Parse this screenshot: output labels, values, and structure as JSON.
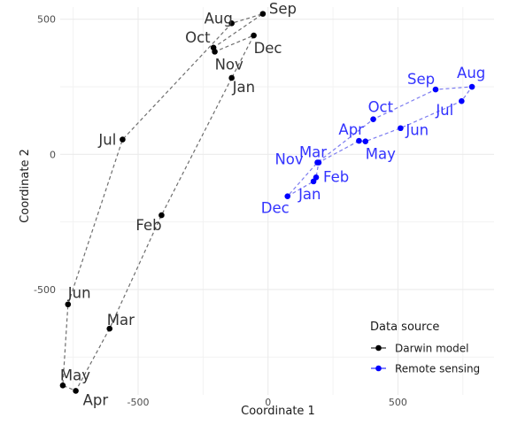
{
  "chart_data": {
    "type": "scatter",
    "title": "",
    "xlabel": "Coordinate 1",
    "ylabel": "Coordinate 2",
    "xlim": [
      -800,
      870
    ],
    "ylim": [
      -890,
      545
    ],
    "xticks": [
      -500,
      0,
      500
    ],
    "yticks": [
      -500,
      0,
      500
    ],
    "grid": true,
    "legend": {
      "title": "Data source",
      "position": "bottom-right"
    },
    "series": [
      {
        "name": "Darwin model",
        "color": "#000000",
        "line_color": "#6e6e6e",
        "points": [
          {
            "label": "Jan",
            "x": -140,
            "y": 283
          },
          {
            "label": "Feb",
            "x": -410,
            "y": -225
          },
          {
            "label": "Mar",
            "x": -610,
            "y": -645
          },
          {
            "label": "Apr",
            "x": -740,
            "y": -875
          },
          {
            "label": "May",
            "x": -790,
            "y": -855
          },
          {
            "label": "Jun",
            "x": -770,
            "y": -555
          },
          {
            "label": "Jul",
            "x": -560,
            "y": 55
          },
          {
            "label": "Aug",
            "x": -140,
            "y": 485
          },
          {
            "label": "Sep",
            "x": -20,
            "y": 520
          },
          {
            "label": "Oct",
            "x": -210,
            "y": 395
          },
          {
            "label": "Nov",
            "x": -205,
            "y": 380
          },
          {
            "label": "Dec",
            "x": -55,
            "y": 440
          }
        ]
      },
      {
        "name": "Remote sensing",
        "color": "#0000ff",
        "line_color": "#7b7bf0",
        "points": [
          {
            "label": "Jan",
            "x": 175,
            "y": -100
          },
          {
            "label": "Feb",
            "x": 185,
            "y": -85
          },
          {
            "label": "Mar",
            "x": 195,
            "y": -30
          },
          {
            "label": "Apr",
            "x": 350,
            "y": 50
          },
          {
            "label": "May",
            "x": 375,
            "y": 48
          },
          {
            "label": "Jun",
            "x": 510,
            "y": 97
          },
          {
            "label": "Jul",
            "x": 745,
            "y": 197
          },
          {
            "label": "Aug",
            "x": 785,
            "y": 250
          },
          {
            "label": "Sep",
            "x": 645,
            "y": 240
          },
          {
            "label": "Oct",
            "x": 405,
            "y": 130
          },
          {
            "label": "Nov",
            "x": 190,
            "y": -30
          },
          {
            "label": "Dec",
            "x": 75,
            "y": -155
          }
        ]
      }
    ]
  }
}
